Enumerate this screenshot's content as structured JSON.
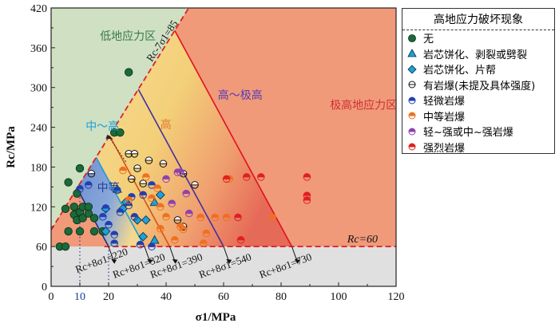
{
  "chart_data": {
    "type": "scatter",
    "xlabel": "σ1/MPa",
    "ylabel": "Rc/MPa",
    "xlim": [
      0,
      120
    ],
    "ylim": [
      0,
      420
    ],
    "xticks": [
      0,
      10,
      20,
      40,
      60,
      80,
      100,
      120
    ],
    "yticks": [
      0,
      60,
      120,
      180,
      240,
      300,
      360,
      420
    ],
    "colors": {
      "low_zone": "#cfe0c3",
      "extreme_zone": "#f09a7a",
      "grey_zone": "#e0e0e0",
      "moderate_zone": "#7f9fd6",
      "high_zone": "#f5d890",
      "boundary_red": "#e02020",
      "line_blue": "#1f9bd8",
      "line_orange": "#d8501a",
      "line_purple": "#4030a0",
      "line_red": "#e01020",
      "line_navy": "#1a2f8a"
    },
    "zone_labels": [
      {
        "text": "低地应力区",
        "x": 17,
        "y": 372,
        "color": "#3a7a4a"
      },
      {
        "text": "中～高",
        "x": 12,
        "y": 236,
        "color": "#1ea0d8"
      },
      {
        "text": "中等",
        "x": 16,
        "y": 143,
        "color": "#2040a0"
      },
      {
        "text": "高",
        "x": 38,
        "y": 238,
        "color": "#e07830"
      },
      {
        "text": "高～极高",
        "x": 58,
        "y": 283,
        "color": "#5a3ab0"
      },
      {
        "text": "极高地应力区",
        "x": 97,
        "y": 268,
        "color": "#d03030"
      }
    ],
    "boundaries": {
      "rc_minus_7s": {
        "label": "Rc-7σ1=85",
        "value": 85
      },
      "rc_eq": {
        "label": "Rc=60",
        "value": 60
      },
      "lines": [
        {
          "label": "Rc+8σ1=220",
          "value": 220,
          "color": "line_navy"
        },
        {
          "label": "Rc+8σ1=320",
          "value": 320,
          "color": "line_blue"
        },
        {
          "label": "Rc+8σ1=390",
          "value": 390,
          "color": "line_orange"
        },
        {
          "label": "Rc+8σ1=540",
          "value": 540,
          "color": "line_purple"
        },
        {
          "label": "Rc+8σ1=730",
          "value": 730,
          "color": "line_red"
        }
      ]
    },
    "legend": {
      "title": "高地应力破坏现象",
      "items": [
        {
          "key": "none",
          "label": "无",
          "marker": "circle",
          "color": "#1a6a3a"
        },
        {
          "key": "disc_spall",
          "label": "岩芯饼化、剥裂或劈裂",
          "marker": "triangle",
          "color": "#1ea0d8"
        },
        {
          "key": "disc_slab",
          "label": "岩芯饼化、片帮",
          "marker": "diamond",
          "color": "#1ea0d8"
        },
        {
          "key": "burst_unspec",
          "label": "有岩爆(未提及具体强度)",
          "marker": "half",
          "color": "#ffffff"
        },
        {
          "key": "slight",
          "label": "轻微岩爆",
          "marker": "half",
          "color": "#2040b0"
        },
        {
          "key": "moderate",
          "label": "中等岩爆",
          "marker": "half",
          "color": "#f07020"
        },
        {
          "key": "slight_strong",
          "label": "轻~强或中~强岩爆",
          "marker": "half",
          "color": "#9040b0"
        },
        {
          "key": "strong",
          "label": "强烈岩爆",
          "marker": "half",
          "color": "#e02020"
        }
      ]
    },
    "series": [
      {
        "name": "无",
        "key": "none",
        "points": [
          [
            3,
            60
          ],
          [
            5,
            60
          ],
          [
            5,
            117
          ],
          [
            6,
            83
          ],
          [
            6,
            157
          ],
          [
            8,
            108
          ],
          [
            8,
            120
          ],
          [
            9,
            100
          ],
          [
            9,
            140
          ],
          [
            10,
            83
          ],
          [
            10,
            112
          ],
          [
            10,
            178
          ],
          [
            11,
            120
          ],
          [
            11,
            103
          ],
          [
            13,
            110
          ],
          [
            13,
            120
          ],
          [
            15,
            83
          ],
          [
            15,
            103
          ],
          [
            18,
            83
          ],
          [
            22,
            232
          ],
          [
            24,
            232
          ],
          [
            27,
            323
          ]
        ]
      },
      {
        "name": "岩芯饼化、剥裂或劈裂",
        "key": "disc_spall",
        "points": [
          [
            23,
            147
          ],
          [
            36,
            70
          ],
          [
            36,
            127
          ]
        ]
      },
      {
        "name": "岩芯饼化、片帮",
        "key": "disc_slab",
        "points": [
          [
            19,
            117
          ],
          [
            19,
            83
          ],
          [
            25,
            117
          ],
          [
            26,
            127
          ],
          [
            30,
            100
          ],
          [
            32,
            75
          ],
          [
            33,
            100
          ],
          [
            38,
            138
          ]
        ]
      },
      {
        "name": "有岩爆(未提及具体强度)",
        "key": "burst_unspec",
        "points": [
          [
            14,
            170
          ],
          [
            27,
            200
          ],
          [
            29,
            200
          ],
          [
            28,
            162
          ],
          [
            30,
            178
          ],
          [
            32,
            155
          ],
          [
            34,
            190
          ],
          [
            39,
            185
          ],
          [
            46,
            170
          ],
          [
            46,
            90
          ],
          [
            50,
            153
          ],
          [
            44,
            100
          ]
        ]
      },
      {
        "name": "轻微岩爆",
        "key": "slight",
        "points": [
          [
            10,
            147
          ],
          [
            13,
            153
          ],
          [
            18,
            105
          ],
          [
            19,
            118
          ],
          [
            20,
            93
          ],
          [
            22,
            78
          ],
          [
            22,
            65
          ],
          [
            23,
            145
          ],
          [
            24,
            112
          ],
          [
            27,
            122
          ],
          [
            28,
            135
          ],
          [
            29,
            105
          ],
          [
            31,
            63
          ],
          [
            32,
            138
          ],
          [
            35,
            153
          ],
          [
            35,
            60
          ]
        ]
      },
      {
        "name": "中等岩爆",
        "key": "moderate",
        "points": [
          [
            25,
            175
          ],
          [
            27,
            130
          ],
          [
            33,
            165
          ],
          [
            35,
            133
          ],
          [
            37,
            148
          ],
          [
            38,
            120
          ],
          [
            38,
            87
          ],
          [
            40,
            105
          ],
          [
            43,
            70
          ],
          [
            45,
            90
          ],
          [
            46,
            86
          ],
          [
            52,
            104
          ],
          [
            53,
            65
          ],
          [
            54,
            80
          ],
          [
            57,
            104
          ],
          [
            61,
            104
          ],
          [
            62,
            162
          ],
          [
            77,
            104
          ]
        ]
      },
      {
        "name": "轻~强或中~强岩爆",
        "key": "slight_strong",
        "points": [
          [
            40,
            162
          ],
          [
            44,
            172
          ],
          [
            45,
            172
          ],
          [
            47,
            140
          ],
          [
            48,
            110
          ],
          [
            42,
            125
          ]
        ]
      },
      {
        "name": "强烈岩爆",
        "key": "strong",
        "points": [
          [
            61,
            162
          ],
          [
            65,
            104
          ],
          [
            66,
            70
          ],
          [
            68,
            165
          ],
          [
            73,
            165
          ],
          [
            89,
            165
          ],
          [
            89,
            137
          ],
          [
            89,
            130
          ]
        ]
      }
    ]
  },
  "axis_labels": {
    "x": "σ1/MPa",
    "y": "Rc/MPa"
  }
}
